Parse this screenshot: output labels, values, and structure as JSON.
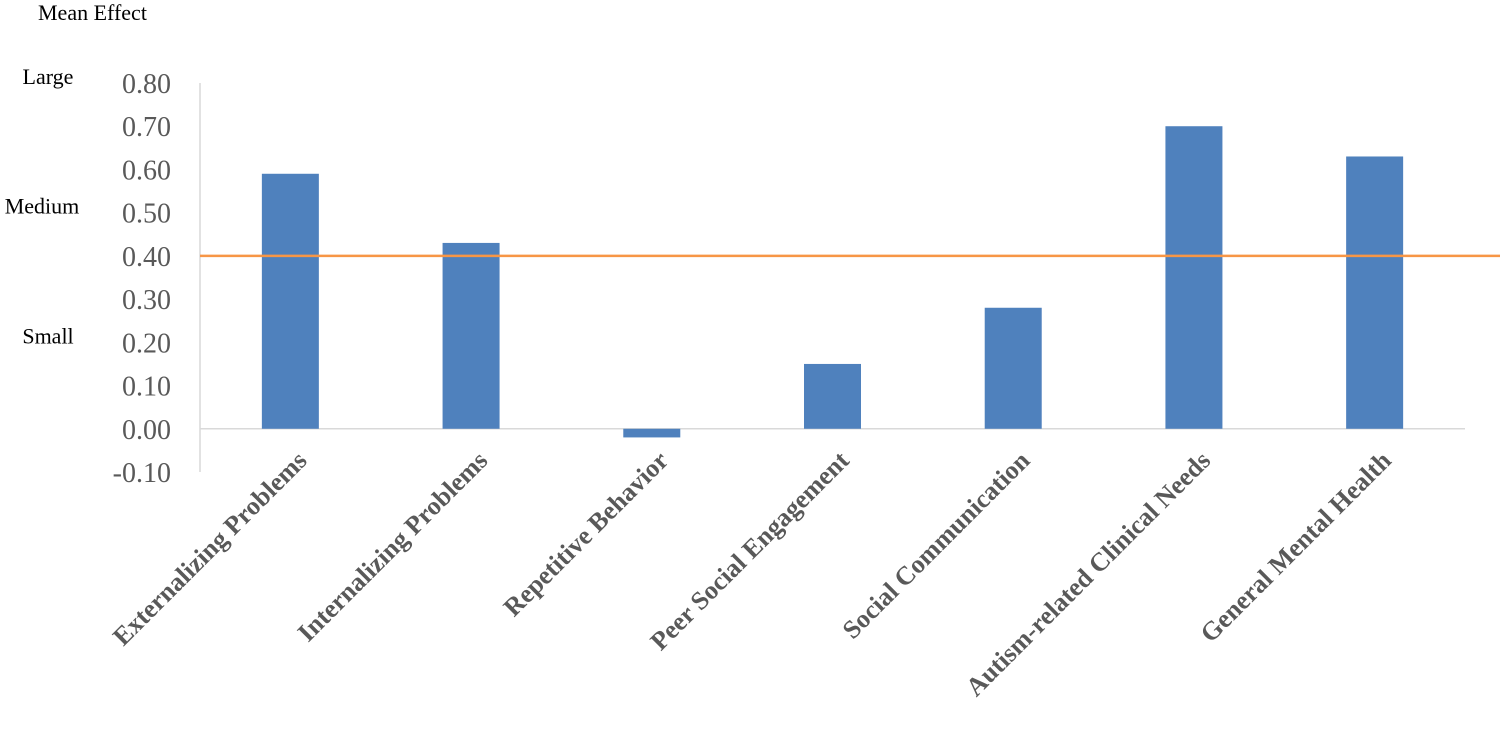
{
  "chart_data": {
    "type": "bar",
    "title": "",
    "xlabel": "",
    "ylabel": "Mean Effect",
    "ylim": [
      -0.1,
      0.8
    ],
    "yticks": [
      "0.80",
      "0.70",
      "0.60",
      "0.50",
      "0.40",
      "0.30",
      "0.20",
      "0.10",
      "0.00",
      "-0.10"
    ],
    "categories": [
      "Externalizing Problems",
      "Internalizing Problems",
      "Repetitive Behavior",
      "Peer Social Engagement",
      "Social Communication",
      "Autism-related Clinical Needs",
      "General Mental Health"
    ],
    "values": [
      0.59,
      0.43,
      -0.02,
      0.15,
      0.28,
      0.7,
      0.63
    ],
    "bar_color": "#4f81bd",
    "reference_line": {
      "value": 0.4,
      "color": "#f79646"
    },
    "annotations": [
      "Large",
      "Medium",
      "Small"
    ],
    "grid": false,
    "legend": "none"
  }
}
